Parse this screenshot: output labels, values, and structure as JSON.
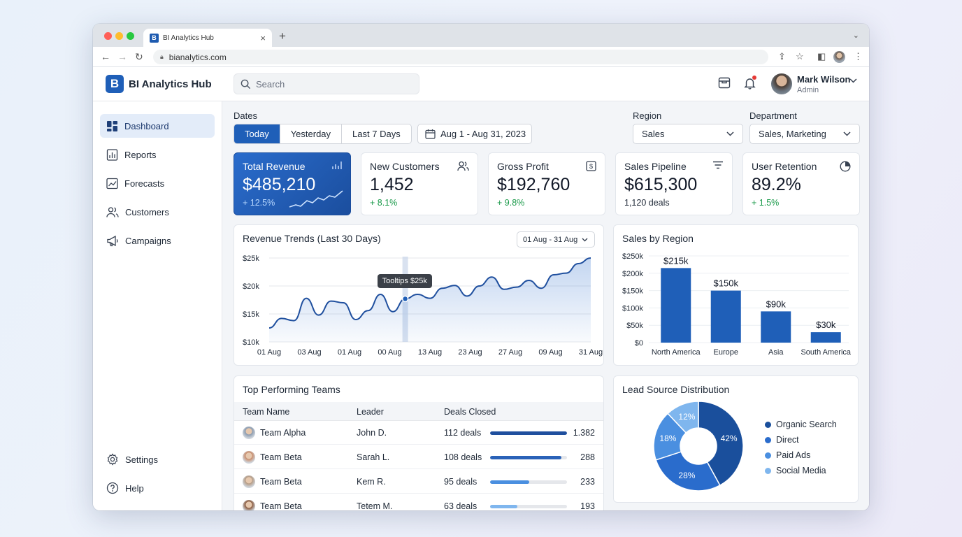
{
  "browser": {
    "tab_title": "BI Analytics Hub",
    "tab_favicon": "B",
    "url": "bianalytics.com"
  },
  "app": {
    "logo_letter": "B",
    "name": "BI Analytics Hub",
    "search_placeholder": "Search",
    "user_name": "Mark Wilson",
    "user_role": "Admin"
  },
  "sidebar": {
    "items": [
      {
        "label": "Dashboard",
        "icon": "dashboard-icon",
        "active": true
      },
      {
        "label": "Reports",
        "icon": "reports-icon"
      },
      {
        "label": "Forecasts",
        "icon": "forecasts-icon"
      },
      {
        "label": "Customers",
        "icon": "customers-icon"
      },
      {
        "label": "Campaigns",
        "icon": "campaigns-icon"
      }
    ],
    "bottom": [
      {
        "label": "Settings",
        "icon": "gear-icon"
      },
      {
        "label": "Help",
        "icon": "help-icon"
      }
    ]
  },
  "filters": {
    "dates_label": "Dates",
    "date_options": [
      "Today",
      "Yesterday",
      "Last 7 Days"
    ],
    "selected_date_option": "Today",
    "date_range": "Aug 1 - Aug 31, 2023",
    "region_label": "Region",
    "region_value": "Sales",
    "department_label": "Department",
    "department_value": "Sales, Marketing"
  },
  "kpis": [
    {
      "title": "Total Revenue",
      "value": "$485,210",
      "delta": "+ 12.5%",
      "icon": "bar-chart-icon"
    },
    {
      "title": "New Customers",
      "value": "1,452",
      "delta": "+ 8.1%",
      "icon": "users-icon"
    },
    {
      "title": "Gross Profit",
      "value": "$192,760",
      "delta": "+ 9.8%",
      "icon": "dollar-icon"
    },
    {
      "title": "Sales Pipeline",
      "value": "$615,300",
      "sub": "1,120 deals",
      "icon": "filter-icon"
    },
    {
      "title": "User Retention",
      "value": "89.2%",
      "delta": "+ 1.5%",
      "icon": "pie-icon"
    }
  ],
  "revenue_trends": {
    "title": "Revenue Trends (Last 30 Days)",
    "range": "01 Aug - 31 Aug",
    "tooltip": "Tooltips $25k"
  },
  "sales_by_region": {
    "title": "Sales by Region"
  },
  "teams": {
    "title": "Top Performing Teams",
    "headers": [
      "Team Name",
      "Leader",
      "Deals Closed"
    ],
    "rows": [
      {
        "team": "Team Alpha",
        "leader": "John D.",
        "deals": "112 deals",
        "value": "1.382",
        "pct": 1.0
      },
      {
        "team": "Team Beta",
        "leader": "Sarah L.",
        "deals": "108 deals",
        "value": "288",
        "pct": 0.93
      },
      {
        "team": "Team Beta",
        "leader": "Kem R.",
        "deals": "95 deals",
        "value": "233",
        "pct": 0.51
      },
      {
        "team": "Team Beta",
        "leader": "Tetem M.",
        "deals": "63 deals",
        "value": "193",
        "pct": 0.35
      }
    ]
  },
  "lead_source": {
    "title": "Lead Source Distribution"
  },
  "colors": {
    "primary": "#1f5fb8",
    "positive": "#1a9a4a",
    "bar": "#1f5fb8"
  },
  "chart_data": [
    {
      "type": "area",
      "title": "Revenue Trends (Last 30 Days)",
      "x_ticks": [
        "01 Aug",
        "03 Aug",
        "01 Aug",
        "00 Aug",
        "13 Aug",
        "23 Aug",
        "27 Aug",
        "09 Aug",
        "31 Aug"
      ],
      "y_ticks": [
        "$10k",
        "$15k",
        "$20k",
        "$25k"
      ],
      "ylim": [
        10,
        25
      ],
      "values": [
        12.5,
        14.2,
        13.8,
        17.8,
        14.8,
        17.3,
        17.0,
        14.0,
        15.6,
        18.5,
        15.4,
        17.7,
        18.5,
        17.8,
        19.6,
        20.1,
        18.2,
        20.0,
        21.6,
        19.4,
        19.8,
        21.0,
        19.6,
        22.0,
        22.3,
        24.0,
        25.0
      ],
      "highlight_index": 11
    },
    {
      "type": "bar",
      "title": "Sales by Region",
      "categories": [
        "North America",
        "Europe",
        "Asia",
        "South America"
      ],
      "values": [
        215,
        150,
        90,
        30
      ],
      "data_labels": [
        "$215k",
        "$150k",
        "$90k",
        "$30k"
      ],
      "y_ticks": [
        "$0",
        "$50k",
        "$100k",
        "$150k",
        "$200k",
        "$250k"
      ],
      "ylim": [
        0,
        250
      ]
    },
    {
      "type": "pie",
      "title": "Lead Source Distribution",
      "categories": [
        "Organic Search",
        "Direct",
        "Paid Ads",
        "Social Media"
      ],
      "values": [
        42,
        28,
        18,
        12
      ],
      "colors": [
        "#1a4f9c",
        "#2a6ccc",
        "#4a8fe0",
        "#7fb6ee"
      ]
    }
  ]
}
